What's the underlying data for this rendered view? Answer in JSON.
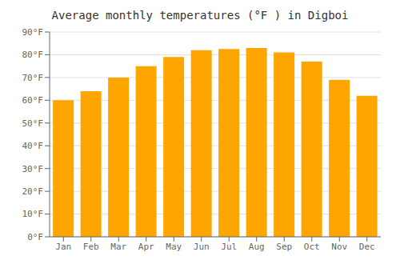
{
  "chart_data": {
    "type": "bar",
    "title": "Average monthly temperatures (°F ) in Digboi",
    "categories": [
      "Jan",
      "Feb",
      "Mar",
      "Apr",
      "May",
      "Jun",
      "Jul",
      "Aug",
      "Sep",
      "Oct",
      "Nov",
      "Dec"
    ],
    "values": [
      60,
      64,
      70,
      75,
      79,
      82,
      82.5,
      83,
      81,
      77,
      69,
      62
    ],
    "color": "#FFA500",
    "ylim": [
      0,
      90
    ],
    "yticks": [
      {
        "value": 0,
        "label": "0°F"
      },
      {
        "value": 10,
        "label": "10°F"
      },
      {
        "value": 20,
        "label": "20°F"
      },
      {
        "value": 30,
        "label": "30°F"
      },
      {
        "value": 40,
        "label": "40°F"
      },
      {
        "value": 50,
        "label": "50°F"
      },
      {
        "value": 60,
        "label": "60°F"
      },
      {
        "value": 70,
        "label": "70°F"
      },
      {
        "value": 80,
        "label": "80°F"
      },
      {
        "value": 90,
        "label": "90°F"
      }
    ],
    "grid": true
  }
}
